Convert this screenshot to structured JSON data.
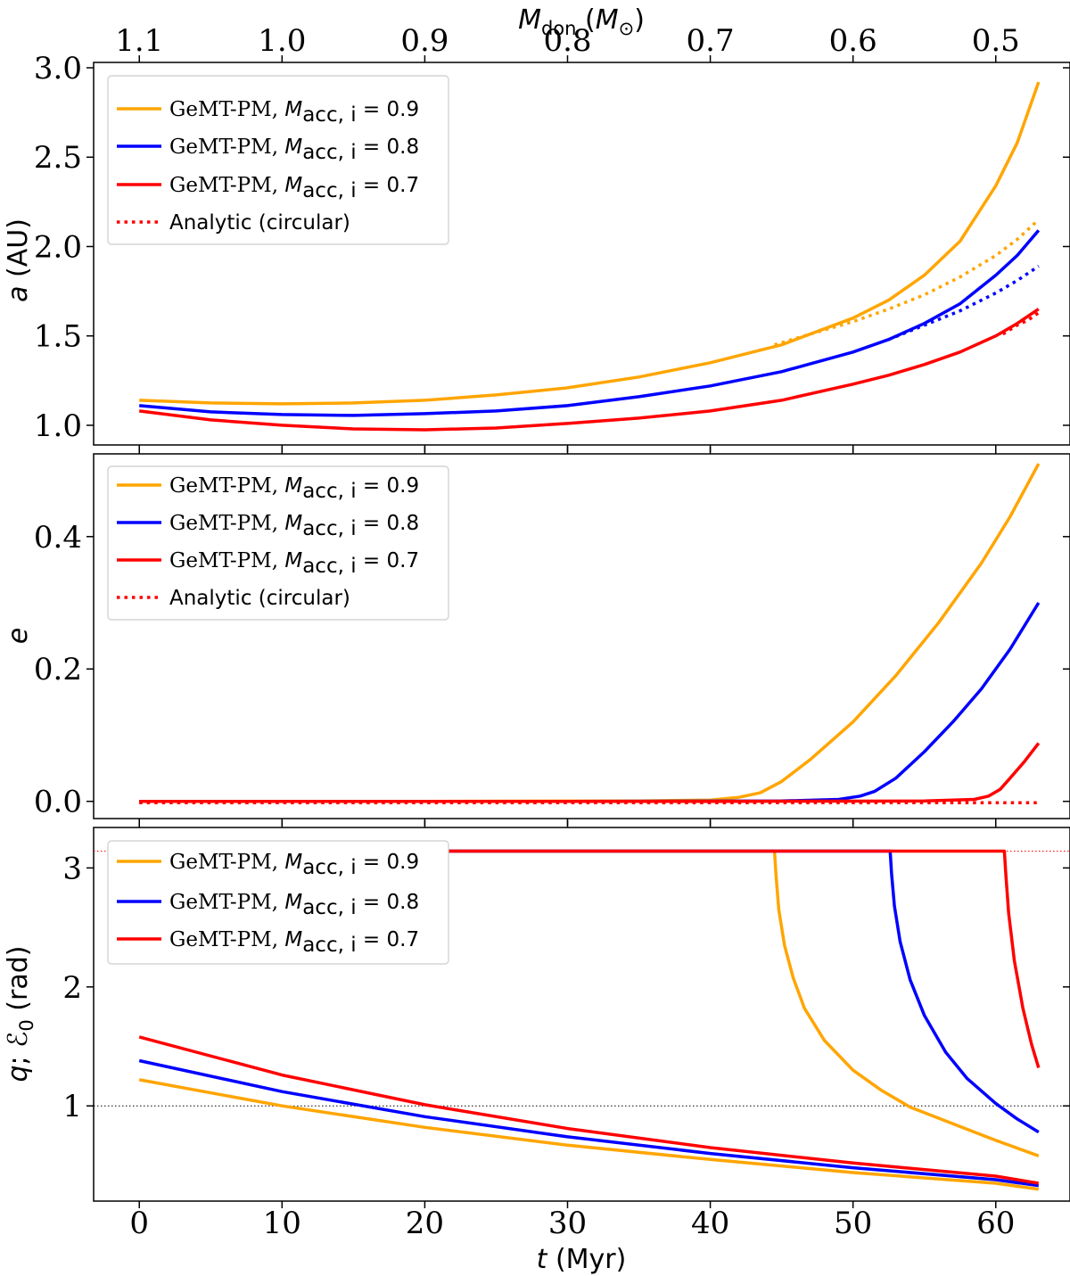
{
  "figure": {
    "top_axis": {
      "label_main": "M",
      "label_sub": "don",
      "label_unit_open": " (",
      "label_unit_M": "M",
      "label_unit_sub": "⊙",
      "label_unit_close": ")",
      "ticks": [
        {
          "label": "1.1",
          "t": 0.0
        },
        {
          "label": "1.0",
          "t": 10.0
        },
        {
          "label": "0.9",
          "t": 20.0
        },
        {
          "label": "0.8",
          "t": 30.0
        },
        {
          "label": "0.7",
          "t": 40.0
        },
        {
          "label": "0.6",
          "t": 50.0
        },
        {
          "label": "0.5",
          "t": 60.0
        }
      ]
    },
    "x_axis": {
      "label_t": "t",
      "label_unit": " (Myr)",
      "range": [
        -3.2,
        65.2
      ],
      "ticks": [
        0,
        10,
        20,
        30,
        40,
        50,
        60
      ],
      "tick_labels": [
        "0",
        "10",
        "20",
        "30",
        "40",
        "50",
        "60"
      ]
    },
    "colors": {
      "m09": "#FFA500",
      "m08": "#0000FF",
      "m07": "#FF0000",
      "ref": "#000000"
    }
  },
  "chart_data": [
    {
      "type": "line",
      "panel": "top",
      "ylabel_sym": "a",
      "ylabel_unit": " (AU)",
      "ylim": [
        0.89,
        3.03
      ],
      "yticks": [
        1.0,
        1.5,
        2.0,
        2.5,
        3.0
      ],
      "ytick_labels": [
        "1.0",
        "1.5",
        "2.0",
        "2.5",
        "3.0"
      ],
      "legend": [
        {
          "text": "GeMT-PM, ",
          "M": "M",
          "sub": "acc, i",
          "eq": " = 0.9",
          "color": "#FFA500",
          "style": "solid"
        },
        {
          "text": "GeMT-PM, ",
          "M": "M",
          "sub": "acc, i",
          "eq": " = 0.8",
          "color": "#0000FF",
          "style": "solid"
        },
        {
          "text": "GeMT-PM, ",
          "M": "M",
          "sub": "acc, i",
          "eq": " = 0.7",
          "color": "#FF0000",
          "style": "solid"
        },
        {
          "text": "Analytic (circular)",
          "color": "#FF0000",
          "style": "dotted"
        }
      ],
      "series": [
        {
          "name": "GeMT-PM, Macc,i = 0.9",
          "color": "#FFA500",
          "style": "solid",
          "x": [
            0,
            5,
            10,
            15,
            20,
            25,
            30,
            35,
            40,
            45,
            50,
            52.5,
            55,
            57.5,
            60,
            61.5,
            63
          ],
          "y": [
            1.14,
            1.125,
            1.12,
            1.125,
            1.14,
            1.17,
            1.21,
            1.27,
            1.35,
            1.45,
            1.6,
            1.7,
            1.84,
            2.03,
            2.34,
            2.58,
            2.92
          ]
        },
        {
          "name": "GeMT-PM, Macc,i = 0.8",
          "color": "#0000FF",
          "style": "solid",
          "x": [
            0,
            5,
            10,
            15,
            20,
            25,
            30,
            35,
            40,
            45,
            50,
            52.5,
            55,
            57.5,
            60,
            61.5,
            63
          ],
          "y": [
            1.11,
            1.075,
            1.06,
            1.055,
            1.065,
            1.08,
            1.11,
            1.16,
            1.22,
            1.3,
            1.41,
            1.48,
            1.57,
            1.68,
            1.84,
            1.95,
            2.09
          ]
        },
        {
          "name": "GeMT-PM, Macc,i = 0.7",
          "color": "#FF0000",
          "style": "solid",
          "x": [
            0,
            5,
            10,
            15,
            20,
            25,
            30,
            35,
            40,
            45,
            50,
            52.5,
            55,
            57.5,
            60,
            61.5,
            63
          ],
          "y": [
            1.08,
            1.03,
            1.0,
            0.98,
            0.975,
            0.985,
            1.01,
            1.04,
            1.08,
            1.14,
            1.23,
            1.28,
            1.34,
            1.41,
            1.5,
            1.57,
            1.65
          ]
        },
        {
          "name": "Analytic (circular) 0.9",
          "color": "#FFA500",
          "style": "dotted",
          "x": [
            44.5,
            47,
            50,
            52.5,
            55,
            57.5,
            60,
            61.5,
            63
          ],
          "y": [
            1.45,
            1.51,
            1.58,
            1.65,
            1.73,
            1.83,
            1.95,
            2.04,
            2.15
          ]
        },
        {
          "name": "Analytic (circular) 0.8",
          "color": "#0000FF",
          "style": "dotted",
          "x": [
            52.5,
            55,
            57.5,
            60,
            61.5,
            63
          ],
          "y": [
            1.48,
            1.56,
            1.64,
            1.74,
            1.81,
            1.89
          ]
        },
        {
          "name": "Analytic (circular) 0.7",
          "color": "#FF0000",
          "style": "dotted",
          "x": [
            60.5,
            61.5,
            62.3,
            63
          ],
          "y": [
            1.51,
            1.56,
            1.59,
            1.63
          ]
        }
      ]
    },
    {
      "type": "line",
      "panel": "middle",
      "ylabel_sym": "e",
      "ylim": [
        -0.026,
        0.525
      ],
      "yticks": [
        0.0,
        0.2,
        0.4
      ],
      "ytick_labels": [
        "0.0",
        "0.2",
        "0.4"
      ],
      "legend": [
        {
          "text": "GeMT-PM, ",
          "M": "M",
          "sub": "acc, i",
          "eq": " = 0.9",
          "color": "#FFA500",
          "style": "solid"
        },
        {
          "text": "GeMT-PM, ",
          "M": "M",
          "sub": "acc, i",
          "eq": " = 0.8",
          "color": "#0000FF",
          "style": "solid"
        },
        {
          "text": "GeMT-PM, ",
          "M": "M",
          "sub": "acc, i",
          "eq": " = 0.7",
          "color": "#FF0000",
          "style": "solid"
        },
        {
          "text": "Analytic (circular)",
          "color": "#FF0000",
          "style": "dotted"
        }
      ],
      "series": [
        {
          "name": "GeMT-PM, Macc,i = 0.9",
          "color": "#FFA500",
          "style": "solid",
          "x": [
            0,
            20,
            35,
            40,
            42,
            43.5,
            45,
            47,
            50,
            53,
            56,
            59,
            61,
            63
          ],
          "y": [
            0,
            0,
            0.0005,
            0.002,
            0.006,
            0.013,
            0.03,
            0.063,
            0.12,
            0.19,
            0.27,
            0.36,
            0.43,
            0.51
          ]
        },
        {
          "name": "GeMT-PM, Macc,i = 0.8",
          "color": "#0000FF",
          "style": "solid",
          "x": [
            0,
            30,
            45,
            49,
            50.5,
            51.5,
            53,
            55,
            57,
            59,
            61,
            63
          ],
          "y": [
            0,
            0,
            0.0005,
            0.003,
            0.008,
            0.015,
            0.035,
            0.075,
            0.12,
            0.17,
            0.23,
            0.3
          ]
        },
        {
          "name": "GeMT-PM, Macc,i = 0.7",
          "color": "#FF0000",
          "style": "solid",
          "x": [
            0,
            40,
            55,
            58.5,
            59.5,
            60.3,
            61,
            62,
            63
          ],
          "y": [
            0,
            0,
            0.0005,
            0.003,
            0.008,
            0.018,
            0.035,
            0.06,
            0.088
          ]
        },
        {
          "name": "Analytic (circular)",
          "color": "#FF0000",
          "style": "dotted",
          "x": [
            0,
            63
          ],
          "y": [
            -0.002,
            -0.002
          ]
        }
      ]
    },
    {
      "type": "line",
      "panel": "bottom",
      "ylabel_q": "q",
      "ylabel_sep": "; ",
      "ylabel_E": "ℰ",
      "ylabel_Esub": "0",
      "ylabel_unit": " (rad)",
      "ylim": [
        0.2,
        3.34
      ],
      "yticks": [
        1,
        2,
        3
      ],
      "ytick_labels": [
        "1",
        "2",
        "3"
      ],
      "hlines": [
        {
          "y": 3.14159,
          "color": "#FF0000",
          "style": "dotted"
        },
        {
          "y": 1.0,
          "color": "#000000",
          "style": "dotted"
        }
      ],
      "legend": [
        {
          "text": "GeMT-PM, ",
          "M": "M",
          "sub": "acc, i",
          "eq": " = 0.9",
          "color": "#FFA500",
          "style": "solid"
        },
        {
          "text": "GeMT-PM, ",
          "M": "M",
          "sub": "acc, i",
          "eq": " = 0.8",
          "color": "#0000FF",
          "style": "solid"
        },
        {
          "text": "GeMT-PM, ",
          "M": "M",
          "sub": "acc, i",
          "eq": " = 0.7",
          "color": "#FF0000",
          "style": "solid"
        }
      ],
      "series": [
        {
          "name": "q, Macc,i = 0.9",
          "color": "#FFA500",
          "style": "solid",
          "x": [
            0,
            10,
            20,
            30,
            40,
            50,
            60,
            63
          ],
          "y": [
            1.22,
            1.0,
            0.82,
            0.67,
            0.55,
            0.44,
            0.35,
            0.3
          ]
        },
        {
          "name": "q, Macc,i = 0.8",
          "color": "#0000FF",
          "style": "solid",
          "x": [
            0,
            10,
            20,
            30,
            40,
            50,
            60,
            63
          ],
          "y": [
            1.38,
            1.12,
            0.91,
            0.74,
            0.6,
            0.48,
            0.38,
            0.33
          ]
        },
        {
          "name": "q, Macc,i = 0.7",
          "color": "#FF0000",
          "style": "solid",
          "x": [
            0,
            10,
            20,
            30,
            40,
            50,
            60,
            63
          ],
          "y": [
            1.58,
            1.26,
            1.01,
            0.81,
            0.65,
            0.52,
            0.41,
            0.35
          ]
        },
        {
          "name": "E0, Macc,i = 0.9",
          "color": "#FFA500",
          "style": "solid",
          "x": [
            0,
            44.5,
            44.6,
            44.8,
            45.2,
            45.8,
            46.6,
            48,
            50,
            52,
            54,
            57,
            60,
            63
          ],
          "y": [
            3.14159,
            3.14159,
            2.95,
            2.65,
            2.35,
            2.08,
            1.82,
            1.55,
            1.3,
            1.13,
            0.99,
            0.85,
            0.71,
            0.58
          ]
        },
        {
          "name": "E0, Macc,i = 0.8",
          "color": "#0000FF",
          "style": "solid",
          "x": [
            0,
            52.6,
            52.7,
            52.9,
            53.3,
            54,
            55,
            56.5,
            58,
            60,
            61.5,
            63
          ],
          "y": [
            3.14159,
            3.14159,
            2.95,
            2.68,
            2.38,
            2.06,
            1.76,
            1.45,
            1.23,
            1.02,
            0.89,
            0.78
          ]
        },
        {
          "name": "E0, Macc,i = 0.7",
          "color": "#FF0000",
          "style": "solid",
          "x": [
            0,
            60.6,
            60.7,
            60.9,
            61.3,
            61.9,
            62.5,
            63
          ],
          "y": [
            3.14159,
            3.14159,
            2.95,
            2.62,
            2.22,
            1.82,
            1.52,
            1.32
          ]
        }
      ]
    }
  ]
}
